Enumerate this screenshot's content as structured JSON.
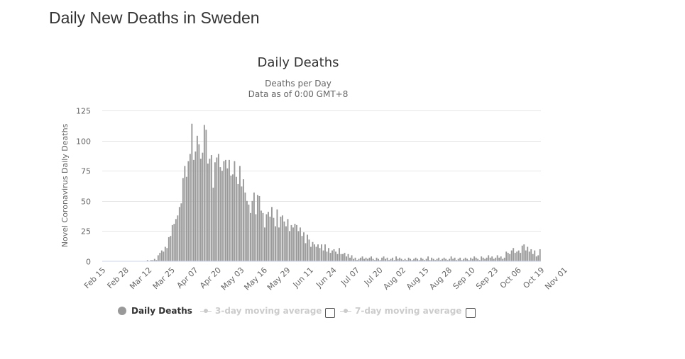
{
  "page": {
    "title": "Daily New Deaths in Sweden"
  },
  "chart_data": {
    "type": "bar",
    "title": "Daily Deaths",
    "subtitle_line1": "Deaths per Day",
    "subtitle_line2": "Data as of 0:00 GMT+8",
    "ylabel": "Novel Coronavirus Daily Deaths",
    "xlabel": "",
    "ylim": [
      0,
      125
    ],
    "yticks": [
      0,
      25,
      50,
      75,
      100,
      125
    ],
    "grid": true,
    "bar_color": "#999999",
    "x_tick_labels": [
      "Feb 15",
      "Feb 28",
      "Mar 12",
      "Mar 25",
      "Apr 07",
      "Apr 20",
      "May 03",
      "May 16",
      "May 29",
      "Jun 11",
      "Jun 24",
      "Jul 07",
      "Jul 20",
      "Aug 02",
      "Aug 15",
      "Aug 28",
      "Sep 10",
      "Sep 23",
      "Oct 06",
      "Oct 19",
      "Nov 01"
    ],
    "x_start": "Feb 15",
    "x_end": "Nov 10",
    "series": [
      {
        "name": "Daily Deaths",
        "values": [
          0,
          0,
          0,
          0,
          0,
          0,
          0,
          0,
          0,
          0,
          0,
          0,
          0,
          0,
          0,
          0,
          0,
          0,
          0,
          0,
          0,
          0,
          0,
          0,
          0,
          1,
          0,
          1,
          1,
          2,
          1,
          5,
          7,
          9,
          8,
          12,
          11,
          20,
          21,
          30,
          31,
          35,
          38,
          45,
          48,
          69,
          79,
          70,
          83,
          89,
          114,
          84,
          91,
          104,
          97,
          85,
          90,
          113,
          109,
          81,
          85,
          88,
          61,
          82,
          86,
          89,
          78,
          75,
          83,
          84,
          77,
          84,
          71,
          72,
          83,
          70,
          64,
          79,
          62,
          68,
          57,
          50,
          47,
          40,
          50,
          57,
          39,
          55,
          54,
          42,
          40,
          28,
          39,
          41,
          37,
          45,
          36,
          29,
          43,
          28,
          37,
          38,
          33,
          29,
          35,
          25,
          30,
          28,
          31,
          30,
          25,
          28,
          21,
          24,
          15,
          22,
          18,
          12,
          16,
          14,
          12,
          14,
          11,
          14,
          9,
          14,
          8,
          11,
          7,
          9,
          10,
          8,
          6,
          11,
          6,
          6,
          7,
          4,
          6,
          3,
          5,
          2,
          3,
          1,
          2,
          3,
          4,
          2,
          3,
          2,
          3,
          4,
          2,
          1,
          3,
          2,
          1,
          3,
          4,
          2,
          3,
          1,
          2,
          3,
          1,
          4,
          2,
          3,
          2,
          1,
          2,
          1,
          3,
          2,
          1,
          2,
          3,
          2,
          1,
          3,
          2,
          1,
          2,
          4,
          1,
          3,
          2,
          1,
          2,
          3,
          1,
          2,
          3,
          2,
          1,
          2,
          4,
          2,
          3,
          1,
          2,
          3,
          1,
          2,
          3,
          2,
          1,
          3,
          2,
          4,
          3,
          2,
          1,
          4,
          3,
          2,
          3,
          5,
          3,
          4,
          2,
          3,
          5,
          3,
          4,
          2,
          3,
          8,
          7,
          6,
          9,
          11,
          7,
          8,
          9,
          7,
          13,
          14,
          9,
          12,
          8,
          10,
          6,
          9,
          4,
          5,
          10
        ]
      }
    ],
    "legend": {
      "placement": "bottom",
      "items": [
        {
          "label": "Daily Deaths",
          "color": "#999999",
          "enabled": true
        },
        {
          "label": "3-day moving average",
          "color": "#cccccc",
          "enabled": false
        },
        {
          "label": "7-day moving average",
          "color": "#cccccc",
          "enabled": false
        }
      ]
    }
  }
}
